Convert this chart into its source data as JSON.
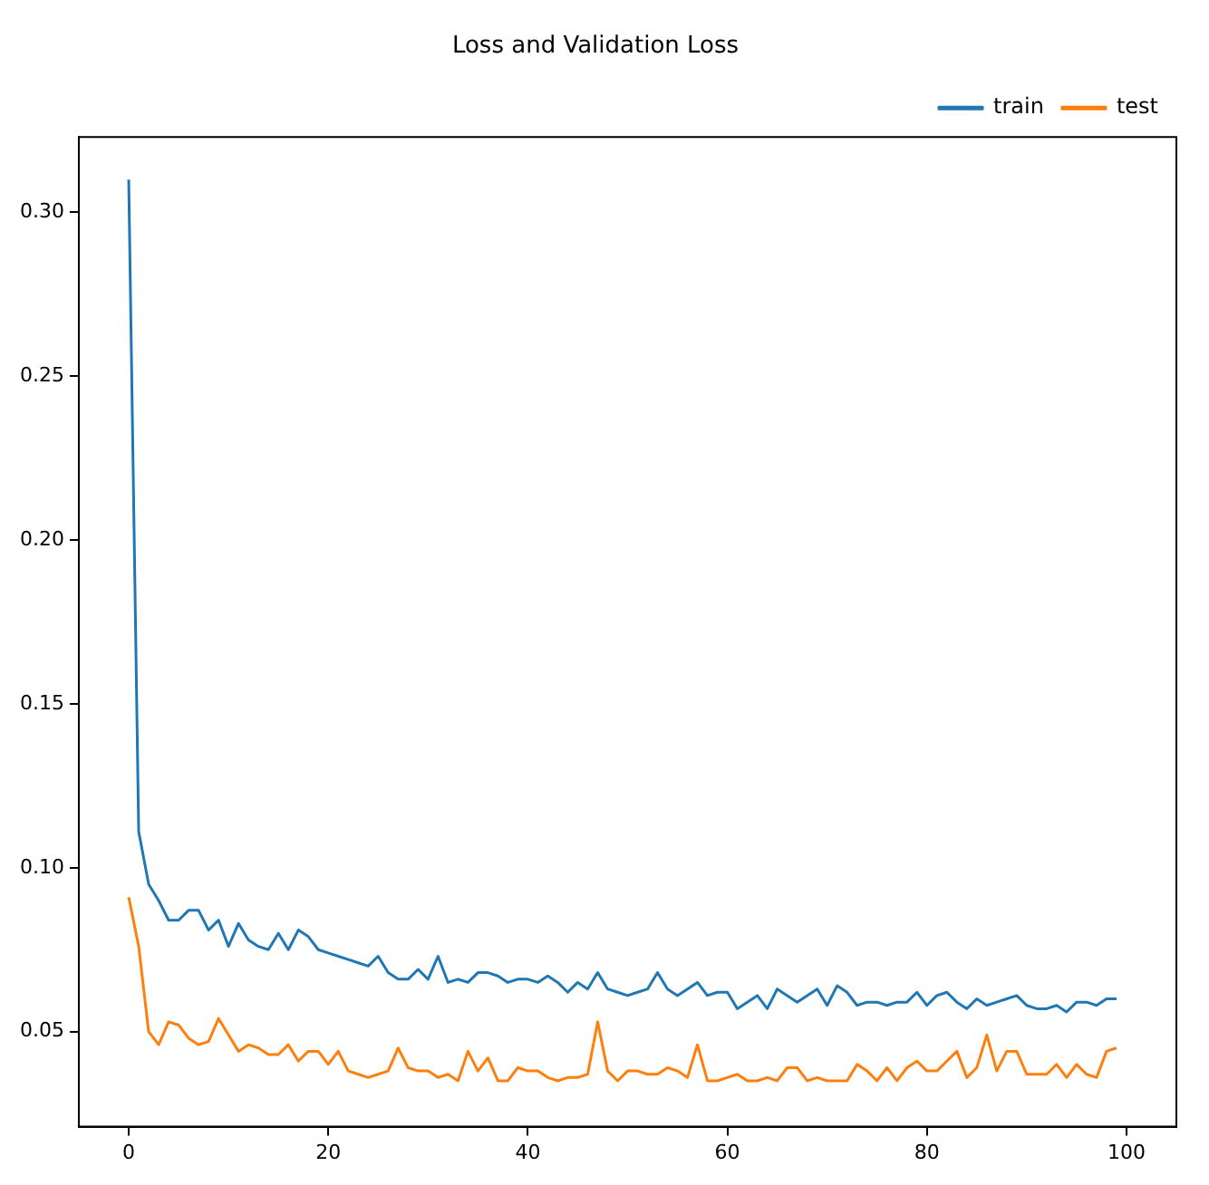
{
  "chart_data": {
    "type": "line",
    "title": "Loss and Validation Loss",
    "x": [
      0,
      1,
      2,
      3,
      4,
      5,
      6,
      7,
      8,
      9,
      10,
      11,
      12,
      13,
      14,
      15,
      16,
      17,
      18,
      19,
      20,
      21,
      22,
      23,
      24,
      25,
      26,
      27,
      28,
      29,
      30,
      31,
      32,
      33,
      34,
      35,
      36,
      37,
      38,
      39,
      40,
      41,
      42,
      43,
      44,
      45,
      46,
      47,
      48,
      49,
      50,
      51,
      52,
      53,
      54,
      55,
      56,
      57,
      58,
      59,
      60,
      61,
      62,
      63,
      64,
      65,
      66,
      67,
      68,
      69,
      70,
      71,
      72,
      73,
      74,
      75,
      76,
      77,
      78,
      79,
      80,
      81,
      82,
      83,
      84,
      85,
      86,
      87,
      88,
      89,
      90,
      91,
      92,
      93,
      94,
      95,
      96,
      97,
      98,
      99
    ],
    "series": [
      {
        "name": "train",
        "color": "#1f77b4",
        "values": [
          0.31,
          0.111,
          0.095,
          0.09,
          0.084,
          0.084,
          0.087,
          0.087,
          0.081,
          0.084,
          0.076,
          0.083,
          0.078,
          0.076,
          0.075,
          0.08,
          0.075,
          0.081,
          0.079,
          0.075,
          0.074,
          0.073,
          0.072,
          0.071,
          0.07,
          0.073,
          0.068,
          0.066,
          0.066,
          0.069,
          0.066,
          0.073,
          0.065,
          0.066,
          0.065,
          0.068,
          0.068,
          0.067,
          0.065,
          0.066,
          0.066,
          0.065,
          0.067,
          0.065,
          0.062,
          0.065,
          0.063,
          0.068,
          0.063,
          0.062,
          0.061,
          0.062,
          0.063,
          0.068,
          0.063,
          0.061,
          0.063,
          0.065,
          0.061,
          0.062,
          0.062,
          0.057,
          0.059,
          0.061,
          0.057,
          0.063,
          0.061,
          0.059,
          0.061,
          0.063,
          0.058,
          0.064,
          0.062,
          0.058,
          0.059,
          0.059,
          0.058,
          0.059,
          0.059,
          0.062,
          0.058,
          0.061,
          0.062,
          0.059,
          0.057,
          0.06,
          0.058,
          0.059,
          0.06,
          0.061,
          0.058,
          0.057,
          0.057,
          0.058,
          0.056,
          0.059,
          0.059,
          0.058,
          0.06,
          0.06
        ]
      },
      {
        "name": "test",
        "color": "#ff7f0e",
        "values": [
          0.091,
          0.076,
          0.05,
          0.046,
          0.053,
          0.052,
          0.048,
          0.046,
          0.047,
          0.054,
          0.049,
          0.044,
          0.046,
          0.045,
          0.043,
          0.043,
          0.046,
          0.041,
          0.044,
          0.044,
          0.04,
          0.044,
          0.038,
          0.037,
          0.036,
          0.037,
          0.038,
          0.045,
          0.039,
          0.038,
          0.038,
          0.036,
          0.037,
          0.035,
          0.044,
          0.038,
          0.042,
          0.035,
          0.035,
          0.039,
          0.038,
          0.038,
          0.036,
          0.035,
          0.036,
          0.036,
          0.037,
          0.053,
          0.038,
          0.035,
          0.038,
          0.038,
          0.037,
          0.037,
          0.039,
          0.038,
          0.036,
          0.046,
          0.035,
          0.035,
          0.036,
          0.037,
          0.035,
          0.035,
          0.036,
          0.035,
          0.039,
          0.039,
          0.035,
          0.036,
          0.035,
          0.035,
          0.035,
          0.04,
          0.038,
          0.035,
          0.039,
          0.035,
          0.039,
          0.041,
          0.038,
          0.038,
          0.041,
          0.044,
          0.036,
          0.039,
          0.049,
          0.038,
          0.044,
          0.044,
          0.037,
          0.037,
          0.037,
          0.04,
          0.036,
          0.04,
          0.037,
          0.036,
          0.044,
          0.045
        ]
      }
    ],
    "xlim": [
      -5,
      105
    ],
    "xticks": [
      0,
      20,
      40,
      60,
      80,
      100
    ],
    "ylim": [
      0.021,
      0.323
    ],
    "yticks": [
      {
        "value": 0.05,
        "label": "0.05"
      },
      {
        "value": 0.1,
        "label": "0.10"
      },
      {
        "value": 0.15,
        "label": "0.15"
      },
      {
        "value": 0.2,
        "label": "0.20"
      },
      {
        "value": 0.25,
        "label": "0.25"
      },
      {
        "value": 0.3,
        "label": "0.30"
      }
    ],
    "grid": false,
    "legend": "top right",
    "marker": "none",
    "line_style": "solid"
  }
}
